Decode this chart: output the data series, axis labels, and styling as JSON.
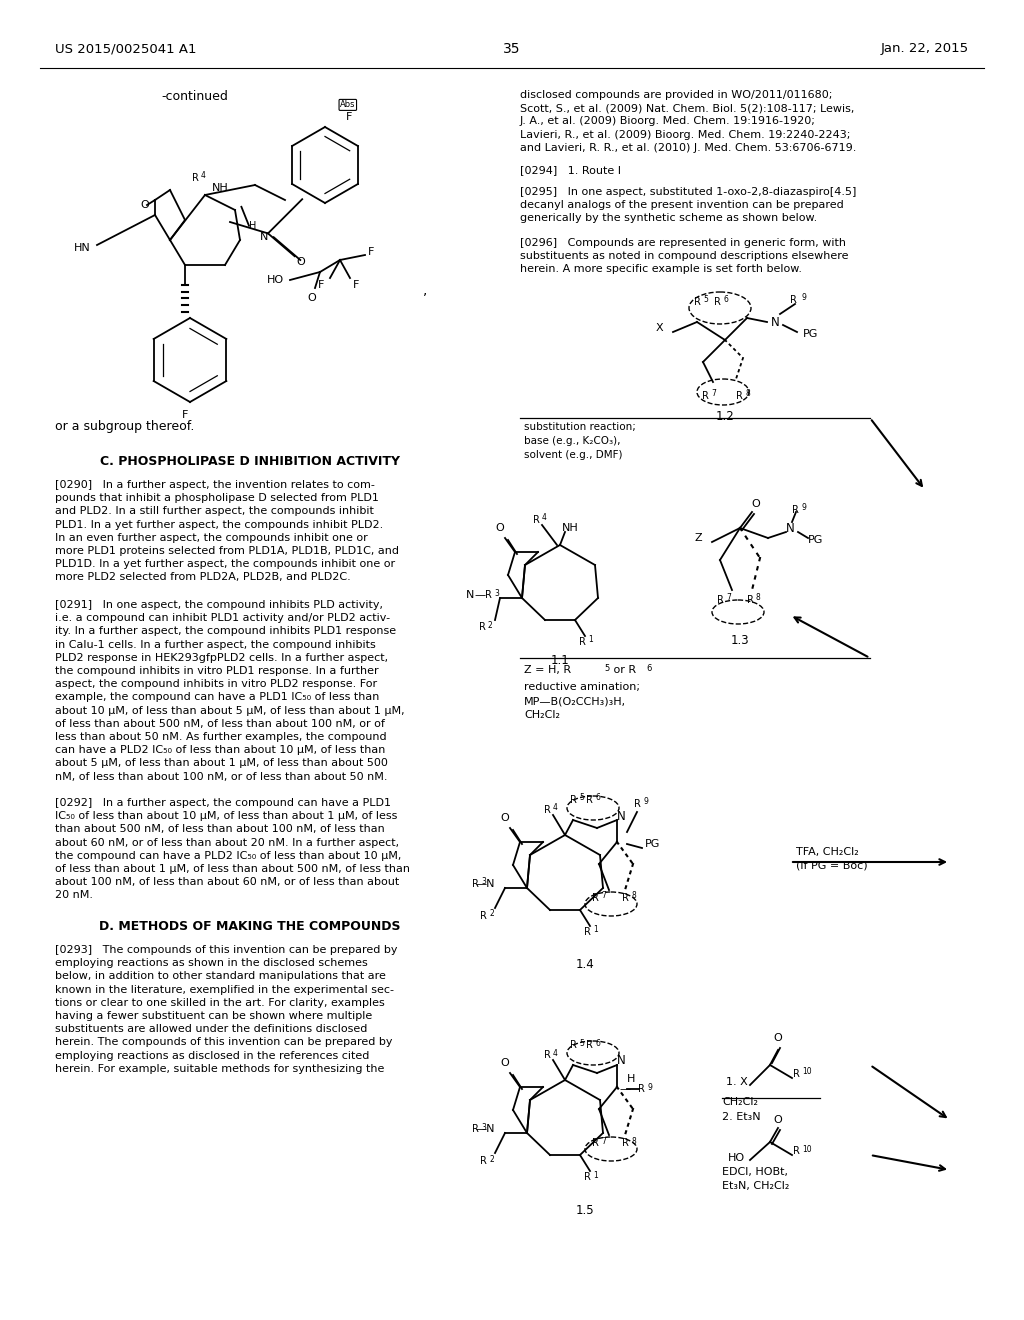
{
  "background_color": "#ffffff",
  "patent_number": "US 2015/0025041 A1",
  "patent_date": "Jan. 22, 2015",
  "page": "35",
  "figsize": [
    10.24,
    13.2
  ],
  "dpi": 100
}
